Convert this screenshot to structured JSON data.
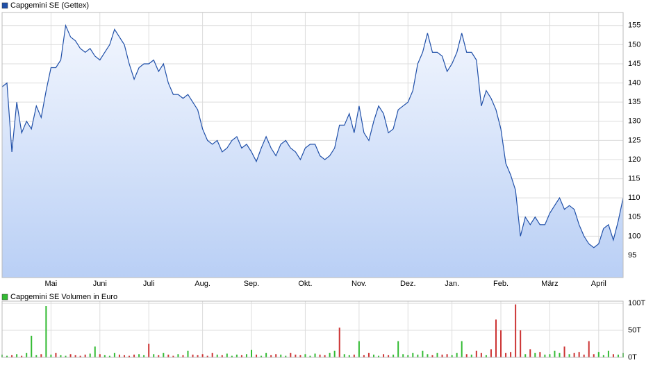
{
  "chart_data": [
    {
      "type": "line",
      "categories": [
        null,
        null,
        null,
        null,
        null,
        null,
        null,
        null,
        null,
        null,
        "Mai",
        null,
        null,
        null,
        null,
        null,
        null,
        null,
        null,
        null,
        "Juni",
        null,
        null,
        null,
        null,
        null,
        null,
        null,
        null,
        null,
        "Juli",
        null,
        null,
        null,
        null,
        null,
        null,
        null,
        null,
        null,
        null,
        "Aug.",
        null,
        null,
        null,
        null,
        null,
        null,
        null,
        null,
        null,
        "Sep.",
        null,
        null,
        null,
        null,
        null,
        null,
        null,
        null,
        null,
        null,
        "Okt.",
        null,
        null,
        null,
        null,
        null,
        null,
        null,
        null,
        null,
        null,
        "Nov.",
        null,
        null,
        null,
        null,
        null,
        null,
        null,
        null,
        null,
        "Dez.",
        null,
        null,
        null,
        null,
        null,
        null,
        null,
        null,
        "Jan.",
        null,
        null,
        null,
        null,
        null,
        null,
        null,
        null,
        null,
        "Feb.",
        null,
        null,
        null,
        null,
        null,
        null,
        null,
        null,
        null,
        "März",
        null,
        null,
        null,
        null,
        null,
        null,
        null,
        null,
        null,
        "April",
        null,
        null,
        null,
        null,
        null
      ],
      "series": [
        {
          "name": "Capgemini SE (Gettex)",
          "color": "#1f4fa8",
          "values": [
            139,
            140,
            122,
            135,
            127,
            130,
            128,
            134,
            131,
            138,
            144,
            144,
            146,
            155,
            152,
            151,
            149,
            148,
            149,
            147,
            146,
            148,
            150,
            154,
            152,
            150,
            145,
            141,
            144,
            145,
            145,
            146,
            143,
            145,
            140,
            137,
            137,
            136,
            137,
            135,
            133,
            128,
            125,
            124,
            125,
            122,
            123,
            125,
            126,
            123,
            124,
            122,
            119.5,
            123,
            126,
            123,
            121,
            124,
            125,
            123,
            122,
            120,
            123,
            124,
            124,
            121,
            120,
            121,
            123,
            129,
            129,
            132,
            127,
            134,
            127,
            125,
            130,
            134,
            132,
            127,
            128,
            133,
            134,
            135,
            138,
            145,
            148,
            153,
            148,
            148,
            147,
            143,
            145,
            148,
            153,
            148,
            148,
            146,
            134,
            138,
            136,
            133,
            128,
            119,
            116,
            112,
            100,
            105,
            103,
            105,
            103,
            103,
            106,
            108,
            110,
            107,
            108,
            107,
            103,
            100,
            98,
            97,
            98,
            102,
            103,
            99,
            104,
            110
          ]
        }
      ],
      "ylim": [
        89.2,
        158.4
      ],
      "yticks": [
        95,
        100,
        105,
        110,
        115,
        120,
        125,
        130,
        135,
        140,
        145,
        150,
        155
      ],
      "grid": true
    },
    {
      "type": "bar",
      "series": [
        {
          "name": "Capgemini SE Volumen in Euro",
          "color": "#33bb33",
          "values": [
            5,
            3,
            4,
            6,
            3,
            8,
            40,
            4,
            6,
            95,
            5,
            8,
            4,
            3,
            6,
            4,
            3,
            5,
            7,
            20,
            6,
            4,
            3,
            8,
            5,
            4,
            3,
            5,
            6,
            4,
            25,
            6,
            4,
            8,
            5,
            3,
            6,
            4,
            12,
            5,
            4,
            6,
            3,
            8,
            5,
            4,
            7,
            3,
            5,
            4,
            6,
            14,
            5,
            3,
            8,
            4,
            6,
            5,
            3,
            8,
            5,
            4,
            6,
            3,
            7,
            5,
            4,
            8,
            12,
            55,
            6,
            4,
            5,
            30,
            4,
            8,
            5,
            3,
            6,
            4,
            5,
            30,
            6,
            4,
            8,
            5,
            12,
            6,
            4,
            8,
            5,
            6,
            4,
            8,
            30,
            6,
            5,
            12,
            8,
            4,
            15,
            70,
            50,
            8,
            10,
            98,
            50,
            6,
            15,
            8,
            10,
            5,
            6,
            12,
            8,
            20,
            6,
            8,
            10,
            5,
            30,
            6,
            10,
            4,
            12,
            6,
            5,
            8
          ],
          "colors": [
            "#33bb33",
            "#33bb33",
            "#cc3333",
            "#33bb33",
            "#cc3333",
            "#33bb33",
            "#33bb33",
            "#33bb33",
            "#cc3333",
            "#33bb33",
            "#33bb33",
            "#cc3333",
            "#33bb33",
            "#33bb33",
            "#cc3333",
            "#cc3333",
            "#cc3333",
            "#cc3333",
            "#33bb33",
            "#33bb33",
            "#cc3333",
            "#33bb33",
            "#33bb33",
            "#33bb33",
            "#cc3333",
            "#cc3333",
            "#cc3333",
            "#cc3333",
            "#33bb33",
            "#33bb33",
            "#cc3333",
            "#33bb33",
            "#cc3333",
            "#33bb33",
            "#cc3333",
            "#cc3333",
            "#33bb33",
            "#cc3333",
            "#33bb33",
            "#cc3333",
            "#cc3333",
            "#cc3333",
            "#cc3333",
            "#cc3333",
            "#33bb33",
            "#cc3333",
            "#33bb33",
            "#33bb33",
            "#33bb33",
            "#cc3333",
            "#33bb33",
            "#33bb33",
            "#cc3333",
            "#33bb33",
            "#33bb33",
            "#cc3333",
            "#cc3333",
            "#33bb33",
            "#33bb33",
            "#cc3333",
            "#cc3333",
            "#cc3333",
            "#33bb33",
            "#33bb33",
            "#33bb33",
            "#cc3333",
            "#cc3333",
            "#33bb33",
            "#33bb33",
            "#cc3333",
            "#33bb33",
            "#33bb33",
            "#cc3333",
            "#33bb33",
            "#cc3333",
            "#cc3333",
            "#33bb33",
            "#33bb33",
            "#cc3333",
            "#cc3333",
            "#33bb33",
            "#33bb33",
            "#33bb33",
            "#33bb33",
            "#33bb33",
            "#33bb33",
            "#33bb33",
            "#33bb33",
            "#cc3333",
            "#33bb33",
            "#cc3333",
            "#cc3333",
            "#33bb33",
            "#33bb33",
            "#33bb33",
            "#cc3333",
            "#33bb33",
            "#cc3333",
            "#cc3333",
            "#33bb33",
            "#cc3333",
            "#cc3333",
            "#cc3333",
            "#cc3333",
            "#cc3333",
            "#cc3333",
            "#cc3333",
            "#33bb33",
            "#cc3333",
            "#33bb33",
            "#cc3333",
            "#33bb33",
            "#33bb33",
            "#33bb33",
            "#33bb33",
            "#cc3333",
            "#33bb33",
            "#cc3333",
            "#cc3333",
            "#cc3333",
            "#cc3333",
            "#cc3333",
            "#33bb33",
            "#33bb33",
            "#33bb33",
            "#cc3333",
            "#33bb33",
            "#33bb33"
          ]
        }
      ],
      "ylim": [
        0,
        104
      ],
      "yticks": [
        {
          "value": 0,
          "label": "0T"
        },
        {
          "value": 50,
          "label": "50T"
        },
        {
          "value": 100,
          "label": "100T"
        }
      ],
      "grid": true
    }
  ]
}
